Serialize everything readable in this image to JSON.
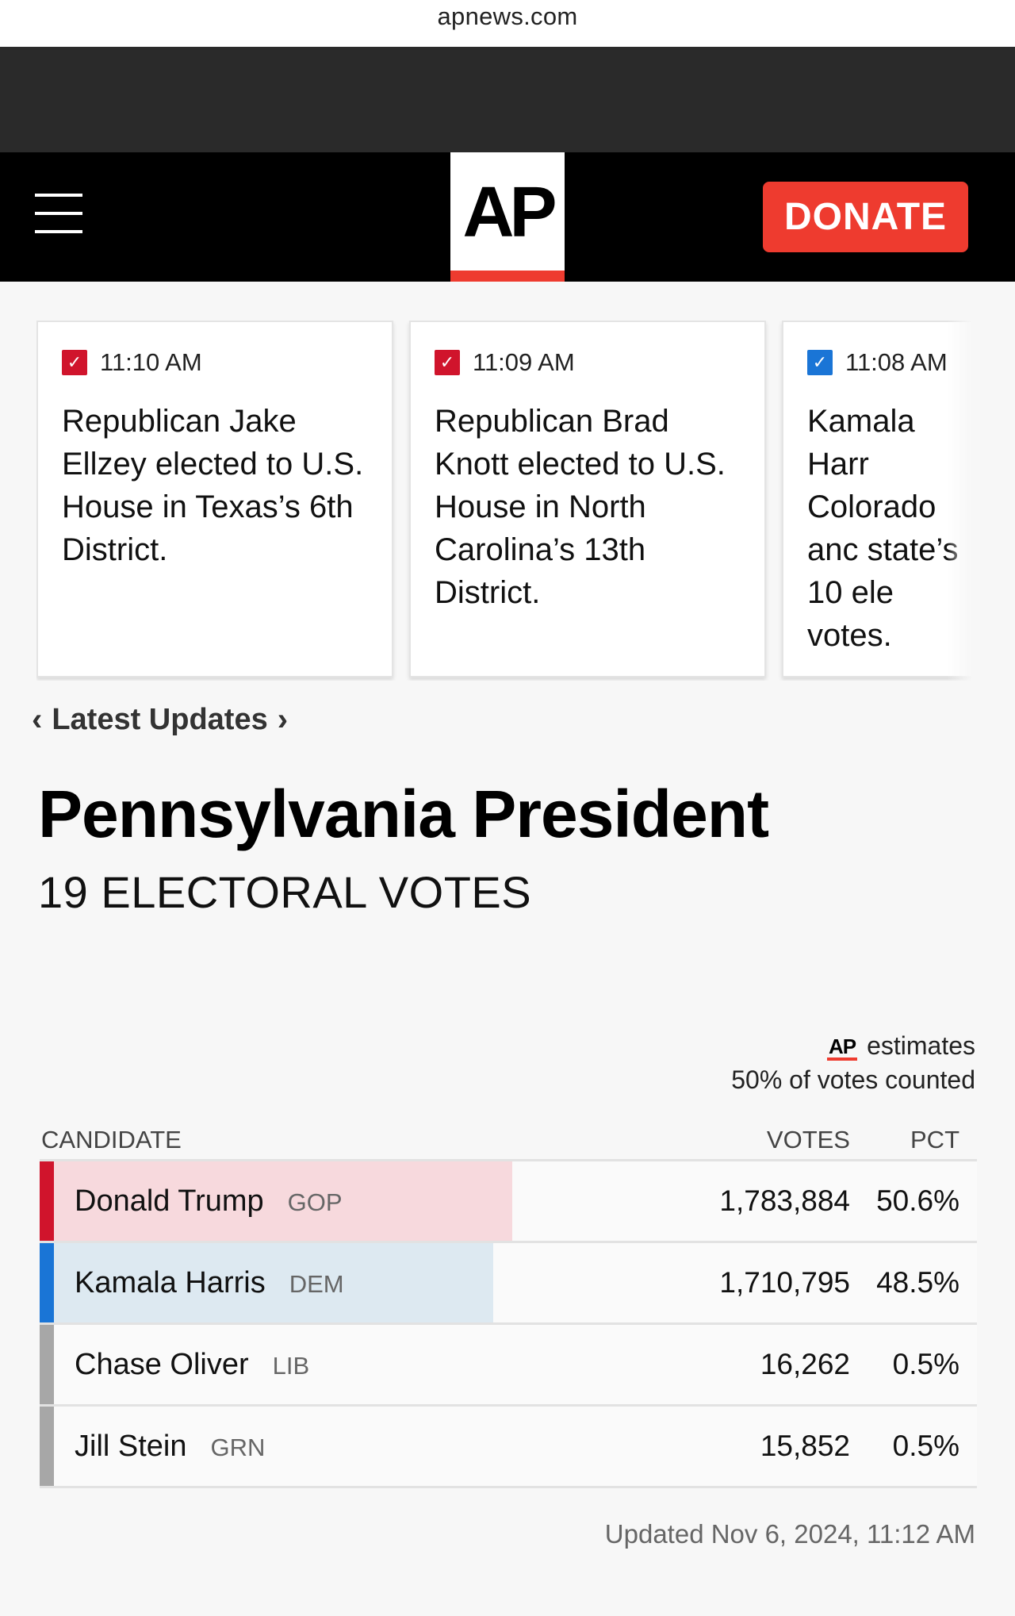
{
  "browser": {
    "url": "apnews.com"
  },
  "header": {
    "logo": "AP",
    "donate_label": "DONATE"
  },
  "updates": [
    {
      "time": "11:10 AM",
      "check_color": "red",
      "headline": "Republican Jake Ellzey elected to U.S. House in Texas’s 6th District."
    },
    {
      "time": "11:09 AM",
      "check_color": "red",
      "headline": "Republican Brad Knott elected to U.S. House in North Carolina’s 13th District."
    },
    {
      "time": "11:08 AM",
      "check_color": "blue",
      "headline": "Kamala Harr Colorado anc state’s 10 ele votes."
    }
  ],
  "latest_updates_label": "Latest Updates",
  "race": {
    "title": "Pennsylvania President",
    "subtitle": "19 ELECTORAL VOTES",
    "estimate_logo": "AP",
    "estimate_label": "estimates",
    "counted": "50% of votes counted",
    "columns": {
      "candidate": "CANDIDATE",
      "votes": "VOTES",
      "pct": "PCT"
    },
    "candidates": [
      {
        "name": "Donald Trump",
        "party": "GOP",
        "votes": "1,783,884",
        "pct": "50.6%",
        "share": 50.6,
        "strip_color": "#d0142c",
        "fill_color": "#f7d9dd"
      },
      {
        "name": "Kamala Harris",
        "party": "DEM",
        "votes": "1,710,795",
        "pct": "48.5%",
        "share": 48.5,
        "strip_color": "#1a75d6",
        "fill_color": "#dde9f1"
      },
      {
        "name": "Chase Oliver",
        "party": "LIB",
        "votes": "16,262",
        "pct": "0.5%",
        "share": 0.5,
        "strip_color": "#a7a7a7",
        "fill_color": "#fafafa"
      },
      {
        "name": "Jill Stein",
        "party": "GRN",
        "votes": "15,852",
        "pct": "0.5%",
        "share": 0.5,
        "strip_color": "#a7a7a7",
        "fill_color": "#fafafa"
      }
    ],
    "updated": "Updated Nov 6, 2024, 11:12 AM"
  }
}
